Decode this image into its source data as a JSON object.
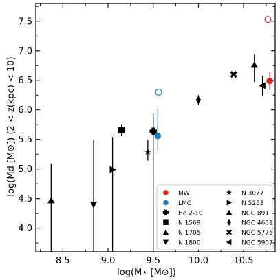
{
  "chart_data": {
    "type": "scatter",
    "xlabel": "log(M⋆ [M⊙])",
    "ylabel": "log(Md [M⊙]) (2 < z(kpc) < 10)",
    "xlim": [
      8.2,
      10.85
    ],
    "ylim": [
      3.6,
      7.8
    ],
    "xticks": [
      8.5,
      9.0,
      9.5,
      10.0,
      10.5
    ],
    "xtick_labels": [
      "8.5",
      "9.0",
      "9.5",
      "10.0",
      "10.5"
    ],
    "yticks": [
      4.0,
      4.5,
      5.0,
      5.5,
      6.0,
      6.5,
      7.0,
      7.5
    ],
    "ytick_labels": [
      "4.0",
      "4.5",
      "5.0",
      "5.5",
      "6.0",
      "6.5",
      "7.0",
      "7.5"
    ],
    "grid": false,
    "legend_placement": "lower-right",
    "series": [
      {
        "name": "MW",
        "marker": "circle",
        "color": "#d62728",
        "points": [
          {
            "x": 10.79,
            "y": 6.49,
            "ylo": 6.34,
            "yhi": 6.64
          }
        ]
      },
      {
        "name": "MW",
        "marker": "circle-open",
        "color": "#d62728",
        "legend": false,
        "points": [
          {
            "x": 10.77,
            "y": 7.53
          }
        ]
      },
      {
        "name": "LMC",
        "marker": "circle",
        "color": "#1f77b4",
        "points": [
          {
            "x": 9.55,
            "y": 5.56,
            "ylo": 5.32,
            "yhi": 6.02
          }
        ]
      },
      {
        "name": "LMC",
        "marker": "circle-open",
        "color": "#1f77b4",
        "legend": false,
        "points": [
          {
            "x": 9.56,
            "y": 6.3
          }
        ]
      },
      {
        "name": "He 2-10",
        "marker": "plus",
        "color": "#000000",
        "points": [
          {
            "x": 9.5,
            "y": 5.64,
            "ylo": 3.6,
            "yhi": 5.94
          }
        ]
      },
      {
        "name": "N 1569",
        "marker": "square",
        "color": "#000000",
        "points": [
          {
            "x": 9.15,
            "y": 5.66,
            "ylo": 5.56,
            "yhi": 5.76
          }
        ]
      },
      {
        "name": "N 1705",
        "marker": "triangle-up",
        "color": "#000000",
        "points": [
          {
            "x": 8.37,
            "y": 4.47,
            "ylo": 3.6,
            "yhi": 5.09
          }
        ]
      },
      {
        "name": "N 1800",
        "marker": "triangle-down",
        "color": "#000000",
        "points": [
          {
            "x": 8.84,
            "y": 4.4,
            "ylo": 3.6,
            "yhi": 5.49
          }
        ]
      },
      {
        "name": "N 3077",
        "marker": "star",
        "color": "#000000",
        "points": [
          {
            "x": 9.44,
            "y": 5.29,
            "ylo": 5.14,
            "yhi": 5.49
          }
        ]
      },
      {
        "name": "N 5253",
        "marker": "triangle-right",
        "color": "#000000",
        "points": [
          {
            "x": 9.05,
            "y": 4.99,
            "ylo": 3.6,
            "yhi": 5.54
          }
        ]
      },
      {
        "name": "NGC 891",
        "marker": "triangle-up",
        "color": "#000000",
        "points": [
          {
            "x": 10.62,
            "y": 6.76,
            "ylo": 6.47,
            "yhi": 6.94
          }
        ]
      },
      {
        "name": "NGC 4631",
        "marker": "diamond",
        "color": "#000000",
        "points": [
          {
            "x": 10.0,
            "y": 6.17,
            "ylo": 6.09,
            "yhi": 6.25
          }
        ]
      },
      {
        "name": "NGC 5775",
        "marker": "x",
        "color": "#000000",
        "points": [
          {
            "x": 10.39,
            "y": 6.6,
            "ylo": 6.57,
            "yhi": 6.63
          }
        ]
      },
      {
        "name": "NGC 5907",
        "marker": "triangle-left",
        "color": "#000000",
        "points": [
          {
            "x": 10.71,
            "y": 6.41,
            "ylo": 6.24,
            "yhi": 6.58
          }
        ]
      }
    ]
  }
}
